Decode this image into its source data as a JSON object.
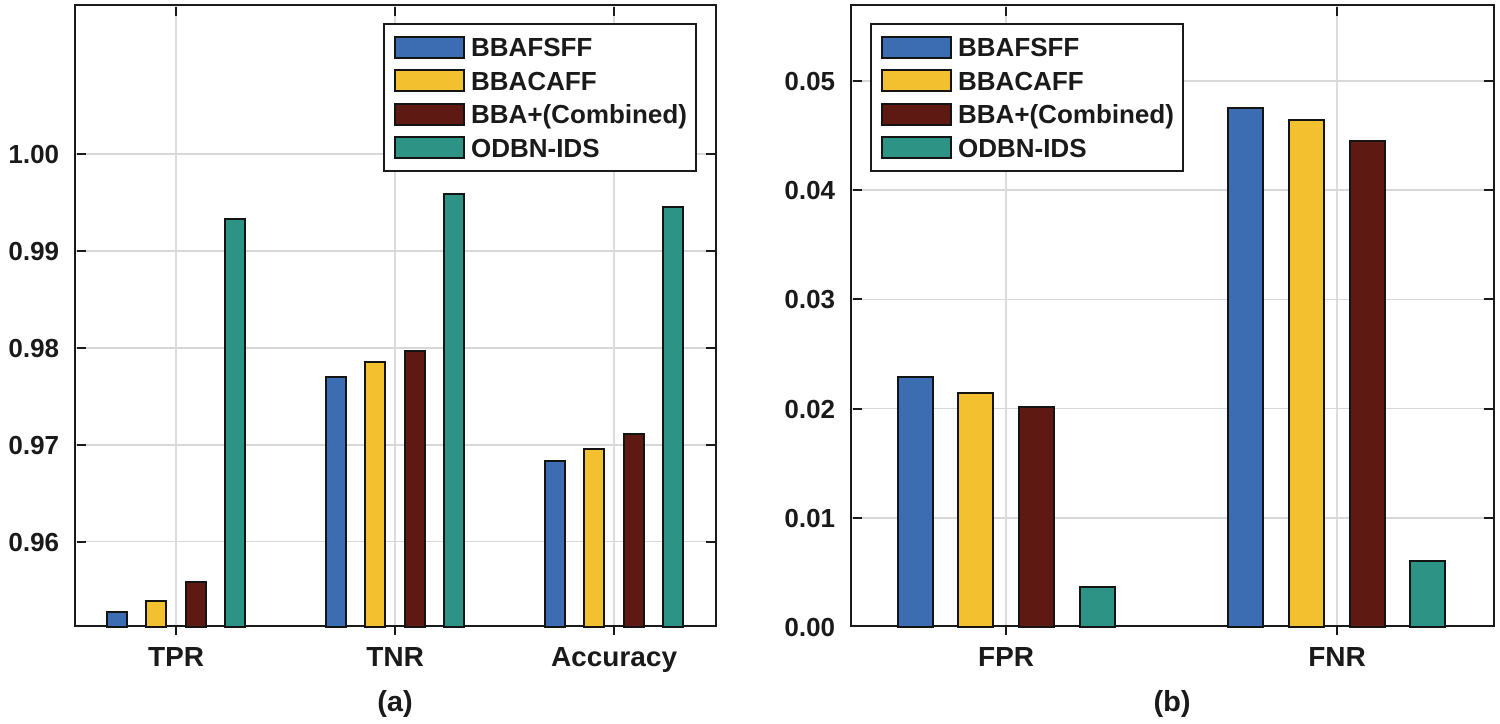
{
  "figure": {
    "background": "#ffffff",
    "axis_color": "#1a1a1a",
    "grid_color": "#d8d8d8"
  },
  "legend": {
    "entries": [
      {
        "label": "BBAFSFF",
        "color": "#3C6CB2"
      },
      {
        "label": "BBACAFF",
        "color": "#F3C12F"
      },
      {
        "label": "BBA+(Combined)",
        "color": "#5E1A12"
      },
      {
        "label": "ODBN-IDS",
        "color": "#2D9485"
      }
    ]
  },
  "chart_data": [
    {
      "id": "a",
      "type": "bar",
      "panel_label": "(a)",
      "categories": [
        "TPR",
        "TNR",
        "Accuracy"
      ],
      "series": [
        {
          "name": "BBAFSFF",
          "color": "#3C6CB2",
          "values": [
            0.9529,
            0.9771,
            0.9684
          ]
        },
        {
          "name": "BBACAFF",
          "color": "#F3C12F",
          "values": [
            0.954,
            0.9787,
            0.9697
          ]
        },
        {
          "name": "BBA+(Combined)",
          "color": "#5E1A12",
          "values": [
            0.9559,
            0.9798,
            0.9712
          ]
        },
        {
          "name": "ODBN-IDS",
          "color": "#2D9485",
          "values": [
            0.9934,
            0.996,
            0.9947
          ]
        }
      ],
      "ylim": [
        0.9512,
        1.0155
      ],
      "yticks": [
        0.96,
        0.97,
        0.98,
        0.99,
        1.0
      ],
      "ytick_labels": [
        "0.96",
        "0.97",
        "0.98",
        "0.99",
        "1.00"
      ],
      "grid": true,
      "legend_position": "top-right-inside"
    },
    {
      "id": "b",
      "type": "bar",
      "panel_label": "(b)",
      "categories": [
        "FPR",
        "FNR"
      ],
      "series": [
        {
          "name": "BBAFSFF",
          "color": "#3C6CB2",
          "values": [
            0.023,
            0.0476
          ]
        },
        {
          "name": "BBACAFF",
          "color": "#F3C12F",
          "values": [
            0.0215,
            0.0465
          ]
        },
        {
          "name": "BBA+(Combined)",
          "color": "#5E1A12",
          "values": [
            0.0202,
            0.0446
          ]
        },
        {
          "name": "ODBN-IDS",
          "color": "#2D9485",
          "values": [
            0.0038,
            0.0061
          ]
        }
      ],
      "ylim": [
        0.0,
        0.05705
      ],
      "yticks": [
        0.0,
        0.01,
        0.02,
        0.03,
        0.04,
        0.05
      ],
      "ytick_labels": [
        "0.00",
        "0.01",
        "0.02",
        "0.03",
        "0.04",
        "0.05"
      ],
      "grid": true,
      "legend_position": "top-left-inside"
    }
  ]
}
